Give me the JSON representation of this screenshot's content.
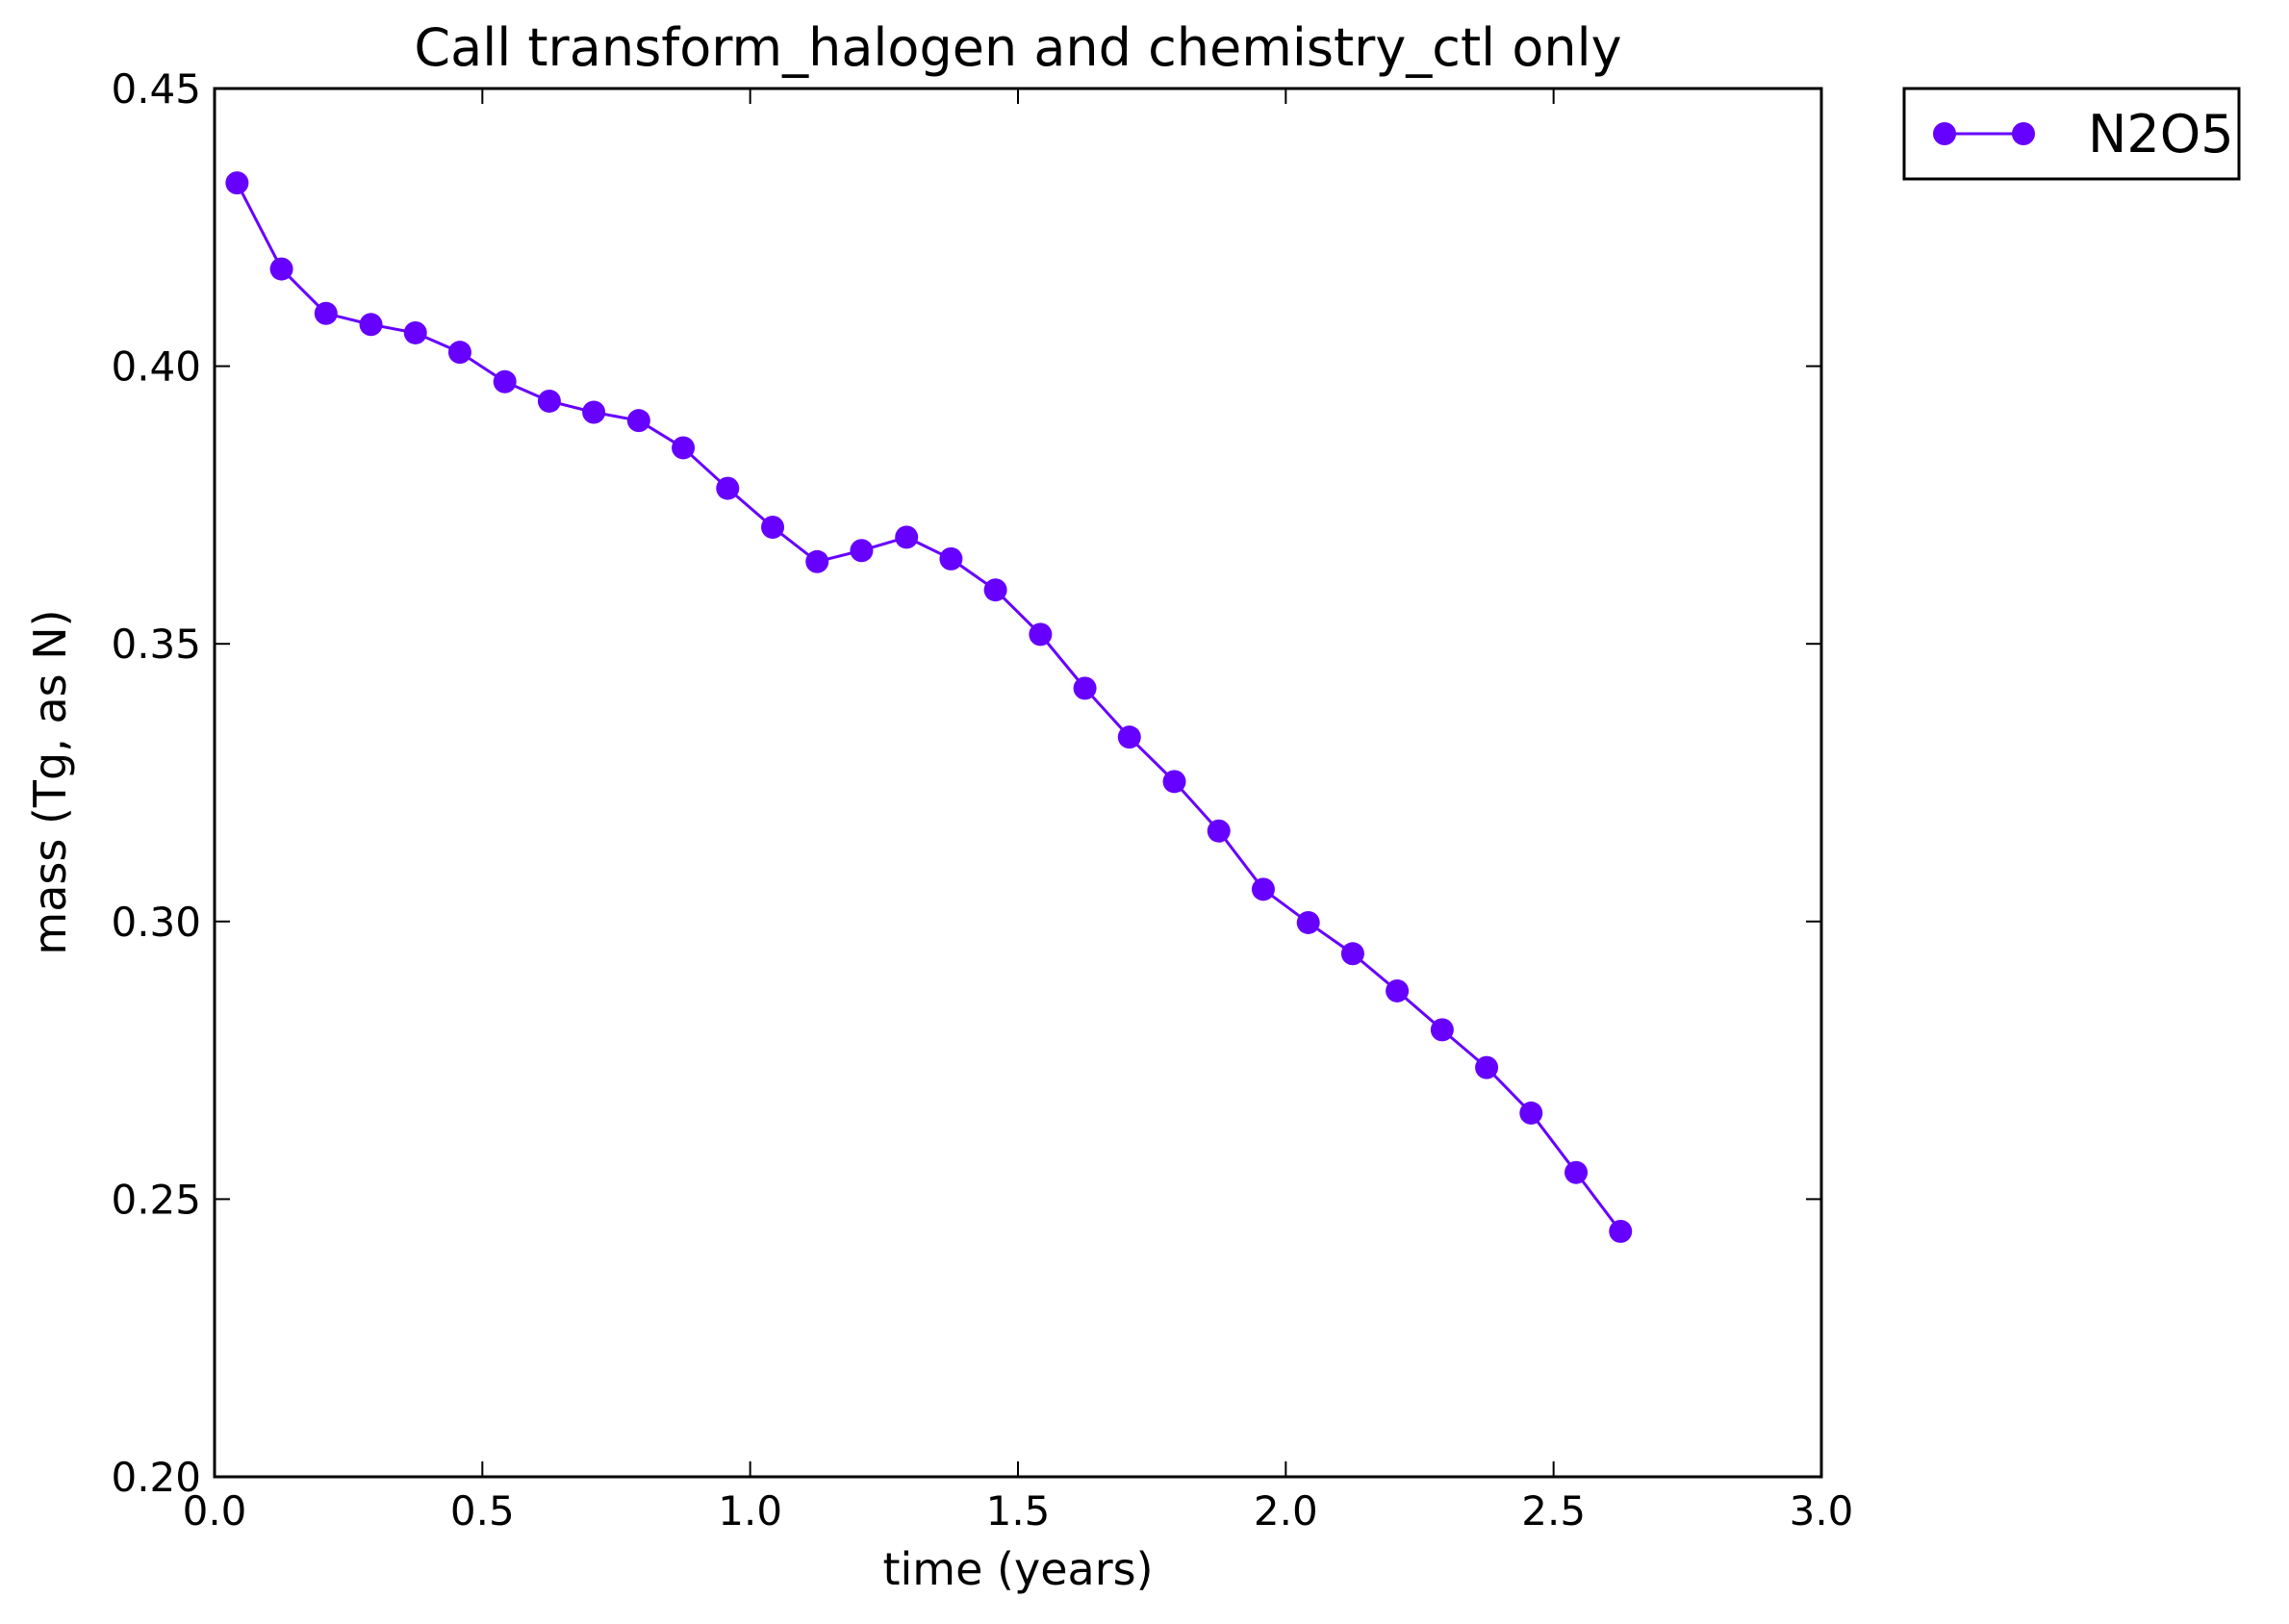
{
  "chart_data": {
    "type": "line",
    "title": "Call transform_halogen and chemistry_ctl only",
    "xlabel": "time (years)",
    "ylabel": "mass (Tg, as N)",
    "xlim": [
      0.0,
      3.0
    ],
    "ylim": [
      0.2,
      0.45
    ],
    "xticks": [
      "0.0",
      "0.5",
      "1.0",
      "1.5",
      "2.0",
      "2.5",
      "3.0"
    ],
    "yticks": [
      "0.20",
      "0.25",
      "0.30",
      "0.35",
      "0.40",
      "0.45"
    ],
    "grid": false,
    "legend_position": "outside-top-right",
    "series": [
      {
        "name": "N2O5",
        "color": "#6600ff",
        "marker": "circle",
        "x": [
          0.042,
          0.125,
          0.208,
          0.292,
          0.375,
          0.458,
          0.542,
          0.625,
          0.708,
          0.792,
          0.875,
          0.958,
          1.042,
          1.125,
          1.208,
          1.292,
          1.375,
          1.458,
          1.542,
          1.625,
          1.708,
          1.792,
          1.875,
          1.958,
          2.042,
          2.125,
          2.208,
          2.292,
          2.375,
          2.458,
          2.542,
          2.625
        ],
        "y": [
          0.433,
          0.4175,
          0.4095,
          0.4075,
          0.406,
          0.4025,
          0.3972,
          0.3937,
          0.3917,
          0.3902,
          0.3853,
          0.378,
          0.371,
          0.3648,
          0.3668,
          0.3692,
          0.3653,
          0.3597,
          0.3517,
          0.342,
          0.3332,
          0.3252,
          0.3163,
          0.3058,
          0.2998,
          0.2942,
          0.2875,
          0.2805,
          0.2737,
          0.2655,
          0.2548,
          0.2442
        ]
      }
    ]
  }
}
